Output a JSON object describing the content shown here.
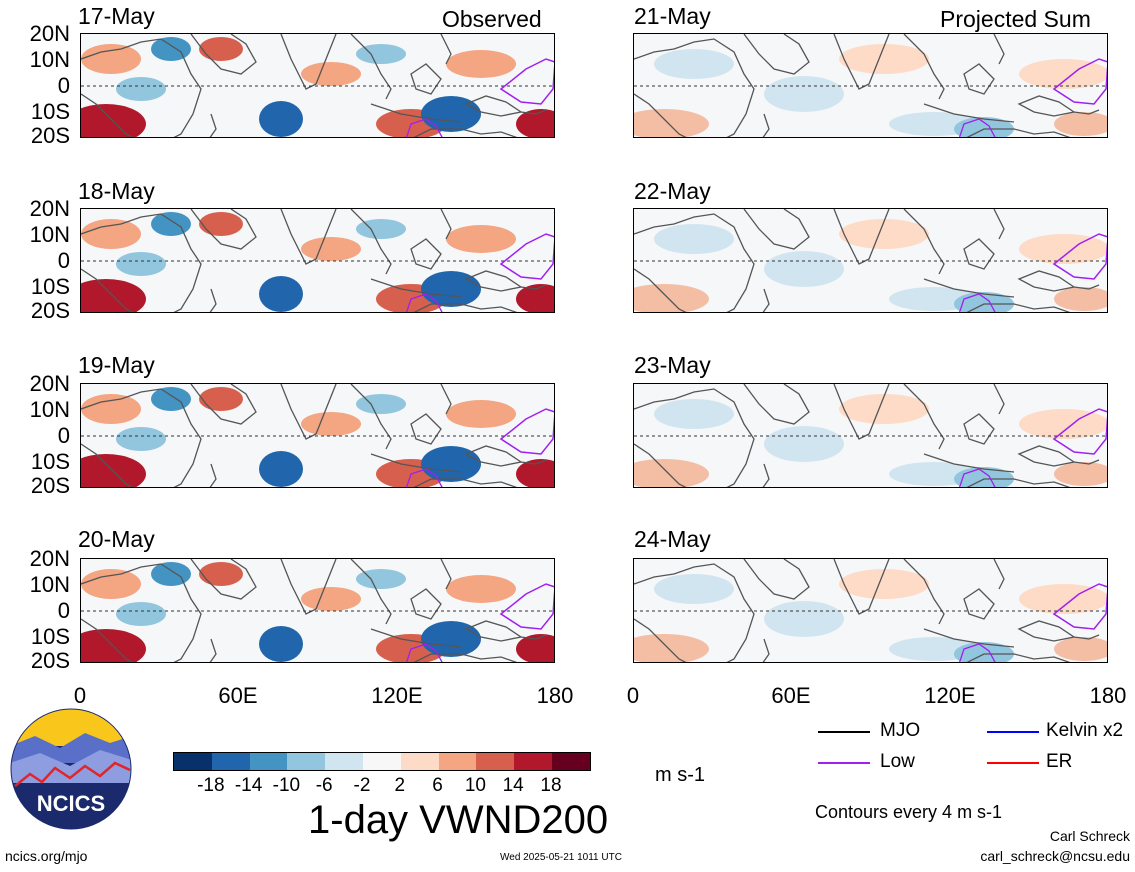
{
  "header": {
    "left_label": "Observed",
    "right_label": "Projected Sum"
  },
  "panels_left": [
    {
      "date": "17-May"
    },
    {
      "date": "18-May"
    },
    {
      "date": "19-May"
    },
    {
      "date": "20-May"
    }
  ],
  "panels_right": [
    {
      "date": "21-May"
    },
    {
      "date": "22-May"
    },
    {
      "date": "23-May"
    },
    {
      "date": "24-May"
    }
  ],
  "lat_labels": [
    "20N",
    "10N",
    "0",
    "10S",
    "20S"
  ],
  "lon_labels": [
    "0",
    "60E",
    "120E",
    "180"
  ],
  "colorbar": {
    "ticks": [
      "-18",
      "-14",
      "-10",
      "-6",
      "-2",
      "2",
      "6",
      "10",
      "14",
      "18"
    ],
    "colors": [
      "#08306b",
      "#2166ac",
      "#4393c3",
      "#92c5de",
      "#d1e5f0",
      "#f7f7f7",
      "#fddbc7",
      "#f4a582",
      "#d6604d",
      "#b2182b",
      "#67001f"
    ],
    "units": "m s-1"
  },
  "title": "1-day VWND200",
  "legend": {
    "items": [
      {
        "label": "MJO",
        "color": "#000000"
      },
      {
        "label": "Kelvin x2",
        "color": "#0000ff"
      },
      {
        "label": "Low",
        "color": "#a020f0"
      },
      {
        "label": "ER",
        "color": "#ff0000"
      }
    ],
    "contours_note": "Contours every 4 m s-1"
  },
  "footer": {
    "logo_text": "NCICS",
    "url": "ncics.org/mjo",
    "timestamp": "Wed 2025-05-21 1011 UTC",
    "author": "Carl Schreck",
    "email": "carl_schreck@ncsu.edu"
  }
}
